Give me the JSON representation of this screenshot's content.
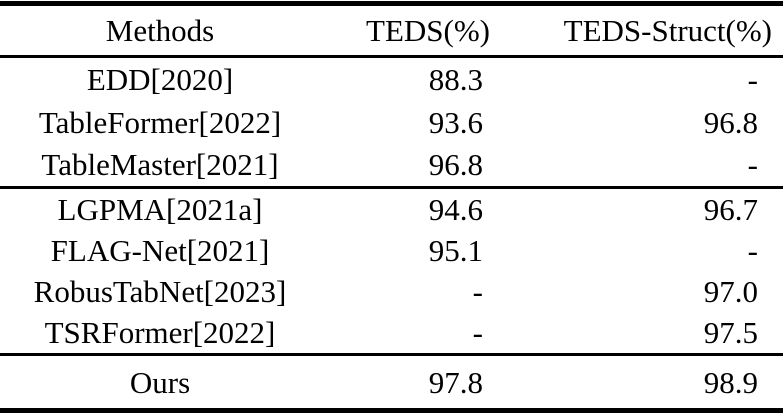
{
  "page": {
    "background_color": "#ffffff",
    "text_color": "#000000",
    "rule_color": "#000000"
  },
  "table": {
    "header": {
      "methods": "Methods",
      "teds": "TEDS(%)",
      "teds_struct": "TEDS-Struct(%)"
    },
    "groups": [
      {
        "rows": [
          {
            "method": "EDD[2020]",
            "teds": "88.3",
            "teds_struct": "-"
          },
          {
            "method": "TableFormer[2022]",
            "teds": "93.6",
            "teds_struct": "96.8"
          },
          {
            "method": "TableMaster[2021]",
            "teds": "96.8",
            "teds_struct": "-"
          }
        ]
      },
      {
        "rows": [
          {
            "method": "LGPMA[2021a]",
            "teds": "94.6",
            "teds_struct": "96.7"
          },
          {
            "method": "FLAG-Net[2021]",
            "teds": "95.1",
            "teds_struct": "-"
          },
          {
            "method": "RobusTabNet[2023]",
            "teds": "-",
            "teds_struct": "97.0"
          },
          {
            "method": "TSRFormer[2022]",
            "teds": "-",
            "teds_struct": "97.5"
          }
        ]
      },
      {
        "rows": [
          {
            "method": "Ours",
            "teds": "97.8",
            "teds_struct": "98.9"
          }
        ]
      }
    ]
  }
}
